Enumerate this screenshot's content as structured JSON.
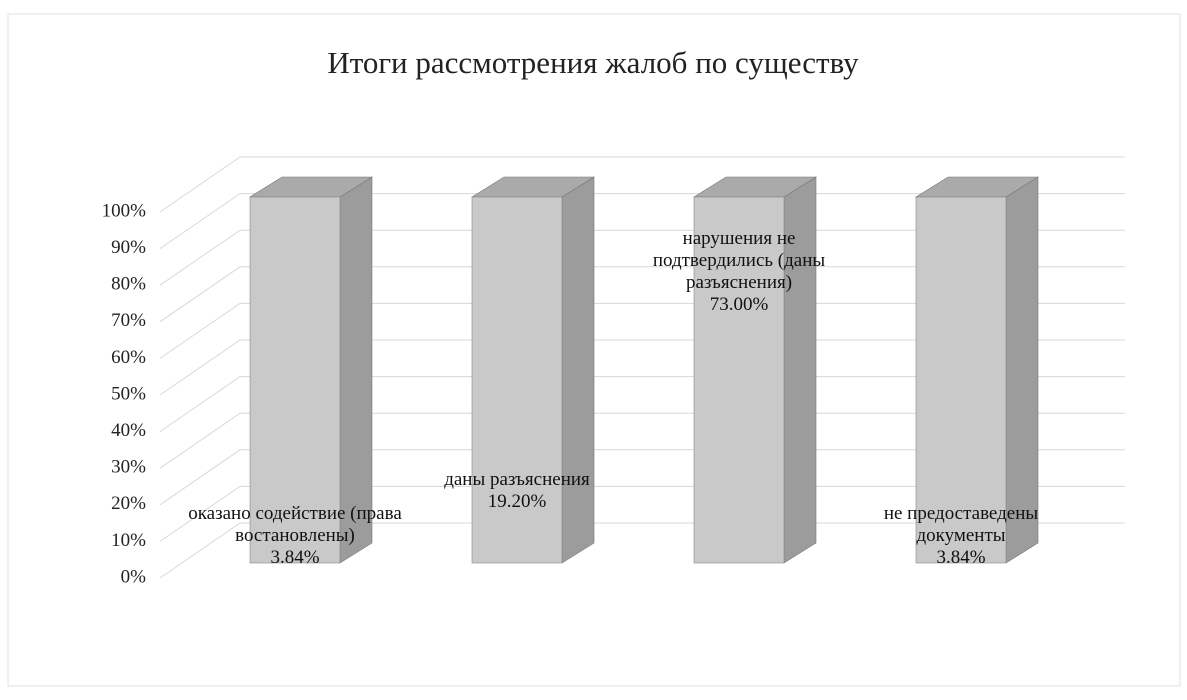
{
  "chart_data": {
    "type": "bar",
    "stacking": "percent",
    "title": "Итоги рассмотрения жалоб по существу",
    "categories": [
      "оказано содействие (права востановлены)",
      "даны разъяснения",
      "нарушения не подтвердились (даны разъяснения)",
      "не предоставедены документы"
    ],
    "series": [
      {
        "color": "#c9c9c9",
        "values": [
          3.84,
          19.2,
          73,
          3.84
        ],
        "value_labels": [
          "3.84%",
          "19.20%",
          "73.00%",
          "3.84%"
        ]
      }
    ],
    "ylim": [
      0,
      100
    ],
    "yticks": [
      {
        "value": 0,
        "label": "0%"
      },
      {
        "value": 10,
        "label": "10%"
      },
      {
        "value": 20,
        "label": "20%"
      },
      {
        "value": 30,
        "label": "30%"
      },
      {
        "value": 40,
        "label": "40%"
      },
      {
        "value": 50,
        "label": "50%"
      },
      {
        "value": 60,
        "label": "60%"
      },
      {
        "value": 70,
        "label": "70%"
      },
      {
        "value": 80,
        "label": "80%"
      },
      {
        "value": 90,
        "label": "90%"
      },
      {
        "value": 100,
        "label": "100%"
      }
    ],
    "grid": true
  }
}
